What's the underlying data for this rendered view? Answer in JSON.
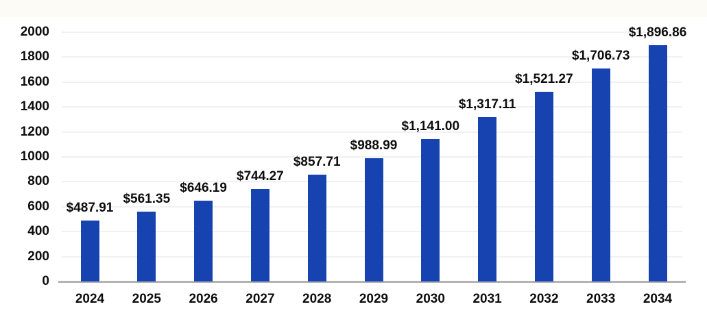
{
  "chart_data": {
    "type": "bar",
    "title": "",
    "categories": [
      "2024",
      "2025",
      "2026",
      "2027",
      "2028",
      "2029",
      "2030",
      "2031",
      "2032",
      "2033",
      "2034"
    ],
    "values": [
      487.91,
      561.35,
      646.19,
      744.27,
      857.71,
      988.99,
      1141.0,
      1317.11,
      1521.27,
      1706.73,
      1896.86
    ],
    "value_labels": [
      "$487.91",
      "$561.35",
      "$646.19",
      "$744.27",
      "$857.71",
      "$988.99",
      "$1,141.00",
      "$1,317.11",
      "$1,521.27",
      "$1,706.73",
      "$1,896.86"
    ],
    "xlabel": "",
    "ylabel": "",
    "ylim": [
      0,
      2000
    ],
    "yticks": [
      0,
      200,
      400,
      600,
      800,
      1000,
      1200,
      1400,
      1600,
      1800,
      2000
    ],
    "grid": true,
    "legend": "none",
    "colors": {
      "bar": "#1743b1",
      "value_label": "#0d0d0d",
      "axis_text": "#0d0d0d",
      "gridline": "#f1f1f1",
      "axis_line": "#b3b3b3",
      "background": "#ffffff",
      "top_band": "#fdfbf6"
    }
  }
}
